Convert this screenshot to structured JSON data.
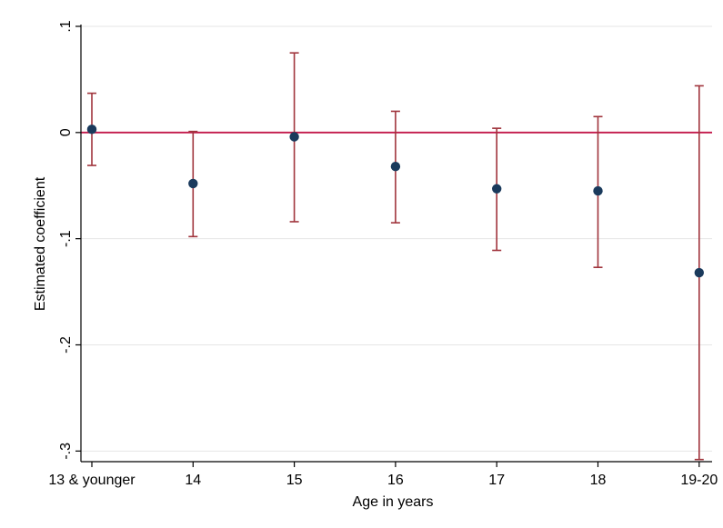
{
  "chart_data": {
    "type": "scatter",
    "title": "",
    "xlabel": "Age in years",
    "ylabel": "Estimated coefficient",
    "categories": [
      "13 & younger",
      "14",
      "15",
      "16",
      "17",
      "18",
      "19-20"
    ],
    "ylim": [
      -0.31,
      0.1
    ],
    "yticks": [
      {
        "value": 0.1,
        "label": ".1"
      },
      {
        "value": 0,
        "label": "0"
      },
      {
        "value": -0.1,
        "label": "-.1"
      },
      {
        "value": -0.2,
        "label": "-.2"
      },
      {
        "value": -0.3,
        "label": "-.3"
      }
    ],
    "grid": true,
    "reference_line": 0,
    "series": [
      {
        "values": [
          0.003,
          -0.048,
          -0.004,
          -0.032,
          -0.053,
          -0.055,
          -0.132
        ],
        "ci_low": [
          -0.031,
          -0.098,
          -0.084,
          -0.085,
          -0.111,
          -0.127,
          -0.308
        ],
        "ci_high": [
          0.037,
          0.001,
          0.075,
          0.02,
          0.004,
          0.015,
          0.044
        ]
      }
    ],
    "colors": {
      "point": "#1a3a5c",
      "ci": "#a0343c",
      "reference": "#c2184a",
      "grid": "#e6e6e6",
      "axis": "#000000"
    }
  }
}
